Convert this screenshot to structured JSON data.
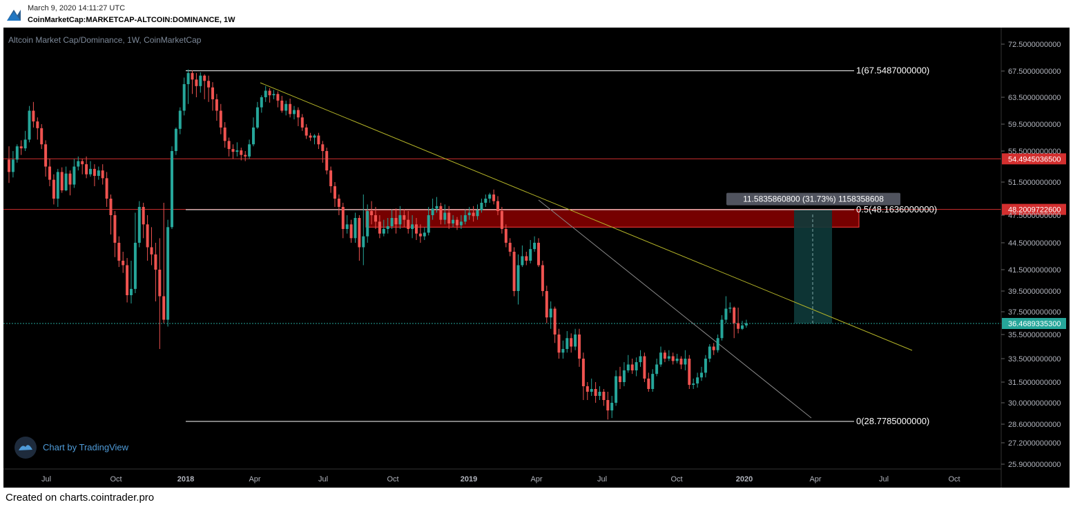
{
  "header": {
    "timestamp": "March 9, 2020 14:11:27 UTC",
    "symbol": "CoinMarketCap:MARKETCAP-ALTCOIN:DOMINANCE, 1W"
  },
  "footer": {
    "text": "Created on charts.cointrader.pro"
  },
  "watermark": {
    "text": "Chart by TradingView"
  },
  "colors": {
    "background": "#000000",
    "up": "#26a69a",
    "down": "#ef5350",
    "fib_line": "#ffffff",
    "trendline": "#b5b528",
    "hline": "#d32f2f",
    "zone_fill": "#8b0000",
    "measure_fill": "#0e3a3a",
    "price_line": "#26a69a"
  },
  "chart_data": {
    "type": "candlestick",
    "title": "Altcoin Market Cap/Dominance, 1W, CoinMarketCap",
    "y_axis_ticks": [
      "72.5000000000",
      "67.5000000000",
      "63.5000000000",
      "59.5000000000",
      "55.5000000000",
      "51.5000000000",
      "47.5000000000",
      "44.5000000000",
      "41.5000000000",
      "39.5000000000",
      "37.5000000000",
      "35.5000000000",
      "33.5000000000",
      "31.5000000000",
      "30.0000000000",
      "28.6000000000",
      "27.2000000000",
      "25.9000000000"
    ],
    "x_axis_ticks": [
      "Jul",
      "Oct",
      "2018",
      "Apr",
      "Jul",
      "Oct",
      "2019",
      "Apr",
      "Jul",
      "Oct",
      "2020",
      "Apr",
      "Jul",
      "Oct"
    ],
    "fib_levels": [
      {
        "label": "1(67.5487000000)",
        "value": 67.5487
      },
      {
        "label": "0.5(48.1636000000)",
        "value": 48.1636
      },
      {
        "label": "0(28.7785000000)",
        "value": 28.7785
      }
    ],
    "price_labels": [
      {
        "text": "54.4945036500",
        "value": 54.49450365,
        "color": "#d32f2f"
      },
      {
        "text": "48.2009722600",
        "value": 48.20097226,
        "color": "#d32f2f"
      },
      {
        "text": "36.4689335300",
        "value": 36.46893353,
        "color": "#26a69a"
      }
    ],
    "measure_label": "11.5835860800 (31.73%) 1158358608",
    "candles": [
      [
        54.4,
        52.8,
        56.2,
        51.4
      ],
      [
        52.8,
        54.4,
        55.5,
        52.1
      ],
      [
        54.4,
        56.2,
        56.5,
        54.0
      ],
      [
        56.2,
        55.9,
        57.1,
        55.0
      ],
      [
        55.9,
        57.2,
        58.5,
        55.5
      ],
      [
        57.2,
        61.5,
        62.2,
        56.8
      ],
      [
        61.5,
        59.9,
        62.8,
        59.0
      ],
      [
        59.9,
        58.9,
        60.5,
        57.2
      ],
      [
        58.9,
        56.5,
        59.5,
        55.8
      ],
      [
        56.5,
        53.5,
        57.1,
        52.2
      ],
      [
        53.5,
        51.8,
        54.5,
        51.0
      ],
      [
        51.8,
        49.5,
        52.5,
        48.8
      ],
      [
        49.5,
        52.8,
        53.2,
        48.5
      ],
      [
        52.8,
        50.5,
        53.4,
        50.2
      ],
      [
        50.5,
        52.6,
        53.5,
        50.4
      ],
      [
        52.6,
        51.2,
        53.0,
        49.9
      ],
      [
        51.2,
        53.5,
        54.5,
        50.8
      ],
      [
        53.5,
        54.2,
        54.8,
        53.0
      ],
      [
        54.2,
        53.8,
        54.5,
        52.5
      ],
      [
        53.8,
        52.5,
        54.8,
        52.0
      ],
      [
        52.5,
        53.2,
        54.2,
        52.2
      ],
      [
        53.2,
        52.3,
        53.8,
        51.0
      ],
      [
        52.3,
        53.0,
        53.5,
        51.8
      ],
      [
        53.0,
        52.0,
        53.8,
        51.2
      ],
      [
        52.0,
        49.5,
        52.8,
        48.5
      ],
      [
        49.5,
        47.5,
        50.0,
        45.4
      ],
      [
        47.5,
        44.5,
        48.0,
        42.9
      ],
      [
        44.5,
        42.5,
        45.2,
        41.8
      ],
      [
        42.5,
        42.0,
        43.5,
        41.2
      ],
      [
        42.0,
        39.1,
        42.8,
        38.4
      ],
      [
        39.1,
        39.7,
        42.5,
        38.3
      ],
      [
        39.7,
        44.5,
        47.8,
        39.3
      ],
      [
        44.5,
        48.5,
        49.2,
        44.0
      ],
      [
        48.5,
        46.5,
        49.0,
        45.0
      ],
      [
        46.5,
        44.0,
        47.5,
        42.5
      ],
      [
        44.0,
        43.2,
        46.2,
        42.0
      ],
      [
        43.2,
        41.5,
        44.5,
        38.5
      ],
      [
        41.5,
        39.0,
        45.0,
        34.3
      ],
      [
        39.0,
        36.8,
        49.0,
        36.5
      ],
      [
        36.8,
        46.2,
        47.0,
        36.2
      ],
      [
        46.2,
        55.5,
        56.2,
        46.0
      ],
      [
        55.5,
        58.8,
        59.0,
        55.0
      ],
      [
        58.8,
        61.5,
        62.0,
        58.0
      ],
      [
        61.5,
        65.5,
        66.5,
        60.8
      ],
      [
        65.5,
        67.2,
        67.8,
        62.5
      ],
      [
        67.2,
        66.2,
        67.6,
        64.0
      ],
      [
        66.2,
        65.2,
        67.2,
        63.5
      ],
      [
        65.2,
        66.8,
        67.3,
        64.2
      ],
      [
        66.8,
        66.0,
        67.0,
        63.2
      ],
      [
        66.0,
        65.0,
        66.8,
        62.8
      ],
      [
        65.0,
        63.2,
        65.8,
        61.5
      ],
      [
        63.2,
        61.5,
        64.0,
        60.0
      ],
      [
        61.5,
        59.0,
        62.5,
        58.0
      ],
      [
        59.0,
        57.0,
        59.8,
        56.0
      ],
      [
        57.0,
        55.8,
        57.5,
        54.8
      ],
      [
        55.8,
        55.4,
        56.5,
        54.5
      ],
      [
        55.4,
        55.6,
        56.8,
        54.8
      ],
      [
        55.6,
        55.0,
        56.0,
        54.3
      ],
      [
        55.0,
        54.8,
        55.5,
        54.2
      ],
      [
        54.8,
        56.5,
        57.2,
        54.5
      ],
      [
        56.5,
        59.0,
        60.5,
        56.2
      ],
      [
        59.0,
        62.0,
        62.8,
        58.8
      ],
      [
        62.0,
        63.5,
        63.8,
        61.2
      ],
      [
        63.5,
        64.5,
        65.2,
        62.8
      ],
      [
        64.5,
        63.8,
        64.9,
        62.7
      ],
      [
        63.8,
        64.0,
        64.6,
        63.2
      ],
      [
        64.0,
        63.0,
        64.4,
        62.0
      ],
      [
        63.0,
        61.5,
        63.7,
        61.2
      ],
      [
        61.5,
        62.5,
        63.0,
        60.8
      ],
      [
        62.5,
        61.0,
        63.3,
        60.5
      ],
      [
        61.0,
        61.6,
        62.2,
        60.2
      ],
      [
        61.6,
        60.5,
        62.0,
        59.2
      ],
      [
        60.5,
        59.0,
        61.0,
        58.5
      ],
      [
        59.0,
        57.8,
        59.5,
        57.3
      ],
      [
        57.8,
        57.5,
        58.2,
        57.0
      ],
      [
        57.5,
        57.8,
        58.0,
        56.5
      ],
      [
        57.8,
        56.5,
        58.2,
        55.8
      ],
      [
        56.5,
        55.5,
        57.0,
        54.0
      ],
      [
        55.5,
        53.0,
        56.0,
        52.5
      ],
      [
        53.0,
        51.0,
        53.5,
        50.2
      ],
      [
        51.0,
        49.5,
        51.5,
        48.5
      ],
      [
        49.5,
        48.5,
        50.0,
        47.5
      ],
      [
        48.5,
        46.0,
        49.0,
        45.0
      ],
      [
        46.0,
        46.5,
        47.5,
        45.5
      ],
      [
        46.5,
        45.0,
        47.0,
        44.5
      ],
      [
        45.0,
        47.2,
        47.8,
        44.5
      ],
      [
        47.2,
        44.0,
        47.5,
        42.5
      ],
      [
        44.0,
        45.2,
        50.0,
        42.0
      ],
      [
        45.2,
        48.0,
        48.8,
        44.5
      ],
      [
        48.0,
        47.5,
        49.2,
        46.5
      ],
      [
        47.5,
        46.8,
        48.5,
        46.0
      ],
      [
        46.8,
        45.5,
        47.5,
        45.0
      ],
      [
        45.5,
        46.0,
        47.0,
        45.2
      ],
      [
        46.0,
        46.3,
        47.2,
        45.5
      ],
      [
        46.3,
        47.2,
        48.2,
        46.0
      ],
      [
        47.2,
        46.5,
        48.3,
        45.5
      ],
      [
        46.5,
        47.5,
        48.6,
        46.0
      ],
      [
        47.5,
        47.0,
        48.2,
        46.2
      ],
      [
        47.0,
        46.0,
        48.0,
        45.5
      ],
      [
        46.0,
        46.5,
        47.5,
        45.0
      ],
      [
        46.5,
        45.5,
        47.2,
        44.8
      ],
      [
        45.5,
        45.2,
        46.5,
        44.5
      ],
      [
        45.2,
        45.6,
        46.2,
        44.8
      ],
      [
        45.6,
        47.5,
        48.5,
        45.3
      ],
      [
        47.5,
        48.3,
        49.5,
        47.0
      ],
      [
        48.3,
        48.6,
        49.7,
        47.8
      ],
      [
        48.6,
        47.0,
        49.0,
        46.5
      ],
      [
        47.0,
        47.8,
        48.8,
        46.5
      ],
      [
        47.8,
        46.6,
        48.6,
        46.0
      ],
      [
        46.6,
        47.0,
        47.5,
        46.2
      ],
      [
        47.0,
        46.4,
        47.3,
        45.9
      ],
      [
        46.4,
        46.8,
        47.5,
        46.0
      ],
      [
        46.8,
        47.5,
        48.2,
        46.5
      ],
      [
        47.5,
        47.8,
        48.5,
        47.0
      ],
      [
        47.8,
        47.4,
        48.6,
        46.8
      ],
      [
        47.4,
        48.1,
        48.8,
        47.0
      ],
      [
        48.1,
        49.0,
        49.5,
        47.8
      ],
      [
        49.0,
        49.5,
        50.0,
        48.5
      ],
      [
        49.5,
        50.0,
        50.2,
        49.0
      ],
      [
        50.0,
        49.2,
        50.6,
        48.8
      ],
      [
        49.2,
        48.0,
        49.8,
        47.5
      ],
      [
        48.0,
        46.0,
        48.5,
        45.5
      ],
      [
        46.0,
        44.5,
        46.5,
        44.0
      ],
      [
        44.5,
        43.5,
        45.0,
        43.0
      ],
      [
        43.5,
        39.5,
        44.0,
        39.0
      ],
      [
        39.5,
        42.0,
        43.2,
        38.2
      ],
      [
        42.0,
        43.0,
        44.2,
        41.8
      ],
      [
        43.0,
        42.5,
        43.5,
        42.0
      ],
      [
        42.5,
        43.8,
        44.8,
        42.2
      ],
      [
        43.8,
        44.5,
        45.2,
        43.5
      ],
      [
        44.5,
        42.0,
        45.0,
        41.8
      ],
      [
        42.0,
        39.5,
        42.5,
        39.0
      ],
      [
        39.5,
        37.0,
        40.0,
        36.5
      ],
      [
        37.0,
        37.8,
        38.5,
        36.0
      ],
      [
        37.8,
        35.5,
        38.0,
        34.8
      ],
      [
        35.5,
        34.0,
        36.0,
        33.5
      ],
      [
        34.0,
        34.3,
        35.0,
        33.5
      ],
      [
        34.3,
        35.2,
        35.8,
        34.0
      ],
      [
        35.2,
        34.5,
        35.6,
        34.0
      ],
      [
        34.5,
        35.5,
        36.0,
        34.2
      ],
      [
        35.5,
        33.5,
        36.0,
        32.8
      ],
      [
        33.5,
        31.2,
        34.0,
        30.2
      ],
      [
        31.2,
        30.8,
        31.5,
        30.2
      ],
      [
        30.8,
        31.0,
        31.8,
        30.5
      ],
      [
        31.0,
        30.5,
        31.5,
        30.0
      ],
      [
        30.5,
        30.8,
        31.2,
        30.2
      ],
      [
        30.8,
        30.2,
        31.0,
        29.8
      ],
      [
        30.2,
        29.5,
        30.8,
        28.9
      ],
      [
        29.5,
        30.0,
        30.5,
        29.0
      ],
      [
        30.0,
        32.0,
        32.5,
        29.8
      ],
      [
        32.0,
        31.5,
        32.8,
        31.0
      ],
      [
        31.5,
        32.5,
        33.2,
        31.2
      ],
      [
        32.5,
        33.0,
        33.8,
        32.3
      ],
      [
        33.0,
        32.5,
        33.5,
        32.2
      ],
      [
        32.5,
        33.2,
        33.6,
        32.0
      ],
      [
        33.2,
        33.7,
        34.2,
        32.8
      ],
      [
        33.7,
        31.8,
        34.0,
        31.5
      ],
      [
        31.8,
        31.0,
        32.3,
        30.8
      ],
      [
        31.0,
        32.2,
        32.6,
        30.8
      ],
      [
        32.2,
        33.0,
        33.5,
        32.0
      ],
      [
        33.0,
        34.0,
        34.5,
        32.8
      ],
      [
        34.0,
        33.5,
        34.2,
        33.2
      ],
      [
        33.5,
        33.7,
        34.2,
        33.3
      ],
      [
        33.7,
        33.3,
        34.0,
        33.0
      ],
      [
        33.3,
        33.5,
        33.9,
        33.1
      ],
      [
        33.5,
        33.0,
        33.7,
        32.6
      ],
      [
        33.0,
        33.5,
        34.2,
        32.5
      ],
      [
        33.5,
        31.3,
        33.8,
        31.0
      ],
      [
        31.3,
        31.4,
        31.8,
        31.0
      ],
      [
        31.4,
        31.9,
        32.3,
        31.1
      ],
      [
        31.9,
        32.3,
        32.8,
        31.6
      ],
      [
        32.3,
        33.5,
        33.8,
        31.9
      ],
      [
        33.5,
        34.5,
        34.7,
        33.2
      ],
      [
        34.5,
        34.2,
        34.8,
        33.8
      ],
      [
        34.2,
        35.2,
        35.5,
        34.0
      ],
      [
        35.2,
        36.8,
        37.2,
        35.0
      ],
      [
        36.8,
        37.8,
        39.0,
        36.5
      ],
      [
        37.8,
        37.9,
        38.4,
        37.4
      ],
      [
        37.9,
        36.5,
        38.0,
        35.2
      ],
      [
        36.5,
        36.0,
        37.9,
        35.6
      ],
      [
        36.0,
        36.3,
        36.7,
        35.9
      ],
      [
        36.3,
        36.5,
        36.8,
        36.1
      ]
    ]
  }
}
